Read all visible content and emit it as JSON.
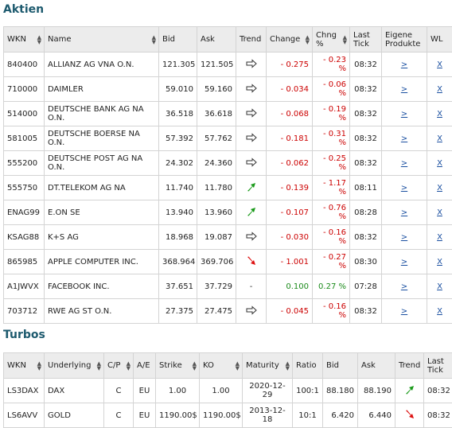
{
  "aktien": {
    "title": "Aktien",
    "headers": [
      "WKN",
      "Name",
      "Bid",
      "Ask",
      "Trend",
      "Change",
      "Chng %",
      "Last Tick",
      "Eigene Produkte",
      "WL"
    ],
    "rows": [
      {
        "wkn": "840400",
        "name": "ALLIANZ AG VNA O.N.",
        "bid": "121.305",
        "ask": "121.505",
        "trend": "flat",
        "change": "- 0.275",
        "chng": "- 0.23 %",
        "dir": "neg",
        "tick": "08:32",
        "prod": ">",
        "wl": "X"
      },
      {
        "wkn": "710000",
        "name": "DAIMLER",
        "bid": "59.010",
        "ask": "59.160",
        "trend": "flat",
        "change": "- 0.034",
        "chng": "- 0.06 %",
        "dir": "neg",
        "tick": "08:32",
        "prod": ">",
        "wl": "X"
      },
      {
        "wkn": "514000",
        "name": "DEUTSCHE BANK AG NA O.N.",
        "bid": "36.518",
        "ask": "36.618",
        "trend": "flat",
        "change": "- 0.068",
        "chng": "- 0.19 %",
        "dir": "neg",
        "tick": "08:32",
        "prod": ">",
        "wl": "X"
      },
      {
        "wkn": "581005",
        "name": "DEUTSCHE BOERSE NA O.N.",
        "bid": "57.392",
        "ask": "57.762",
        "trend": "flat",
        "change": "- 0.181",
        "chng": "- 0.31 %",
        "dir": "neg",
        "tick": "08:32",
        "prod": ">",
        "wl": "X"
      },
      {
        "wkn": "555200",
        "name": "DEUTSCHE POST AG NA O.N.",
        "bid": "24.302",
        "ask": "24.360",
        "trend": "flat",
        "change": "- 0.062",
        "chng": "- 0.25 %",
        "dir": "neg",
        "tick": "08:32",
        "prod": ">",
        "wl": "X"
      },
      {
        "wkn": "555750",
        "name": "DT.TELEKOM AG NA",
        "bid": "11.740",
        "ask": "11.780",
        "trend": "up",
        "change": "- 0.139",
        "chng": "- 1.17 %",
        "dir": "neg",
        "tick": "08:11",
        "prod": ">",
        "wl": "X"
      },
      {
        "wkn": "ENAG99",
        "name": "E.ON SE",
        "bid": "13.940",
        "ask": "13.960",
        "trend": "up",
        "change": "- 0.107",
        "chng": "- 0.76 %",
        "dir": "neg",
        "tick": "08:28",
        "prod": ">",
        "wl": "X"
      },
      {
        "wkn": "KSAG88",
        "name": "K+S AG",
        "bid": "18.968",
        "ask": "19.087",
        "trend": "flat",
        "change": "- 0.030",
        "chng": "- 0.16 %",
        "dir": "neg",
        "tick": "08:32",
        "prod": ">",
        "wl": "X"
      },
      {
        "wkn": "865985",
        "name": "APPLE COMPUTER INC.",
        "bid": "368.964",
        "ask": "369.706",
        "trend": "down",
        "change": "- 1.001",
        "chng": "- 0.27 %",
        "dir": "neg",
        "tick": "08:30",
        "prod": ">",
        "wl": "X"
      },
      {
        "wkn": "A1JWVX",
        "name": "FACEBOOK INC.",
        "bid": "37.651",
        "ask": "37.729",
        "trend": "none",
        "trend_text": "-",
        "change": "0.100",
        "chng": "0.27 %",
        "dir": "pos",
        "tick": "07:28",
        "prod": ">",
        "wl": "X"
      },
      {
        "wkn": "703712",
        "name": "RWE AG ST O.N.",
        "bid": "27.375",
        "ask": "27.475",
        "trend": "flat",
        "change": "- 0.045",
        "chng": "- 0.16 %",
        "dir": "neg",
        "tick": "08:32",
        "prod": ">",
        "wl": "X"
      }
    ]
  },
  "turbos": {
    "title": "Turbos",
    "headers": [
      "WKN",
      "Underlying",
      "C/P",
      "A/E",
      "Strike",
      "KO",
      "Maturity",
      "Ratio",
      "Bid",
      "Ask",
      "Trend",
      "Last Tick"
    ],
    "rows": [
      {
        "wkn": "LS3DAX",
        "underlying": "DAX",
        "cp": "C",
        "ae": "EU",
        "strike": "1.00",
        "ko": "1.00",
        "maturity": "2020-12-29",
        "ratio": "100:1",
        "bid": "88.180",
        "ask": "88.190",
        "trend": "up",
        "tick": "08:32"
      },
      {
        "wkn": "LS6AVV",
        "underlying": "GOLD",
        "cp": "C",
        "ae": "EU",
        "strike": "1190.00$",
        "ko": "1190.00$",
        "maturity": "2013-12-18",
        "ratio": "10:1",
        "bid": "6.420",
        "ask": "6.440",
        "trend": "down",
        "tick": "08:32"
      }
    ]
  },
  "colors": {
    "title": "#1d5a6e",
    "header_bg": "#ececec",
    "negative": "#cc0000",
    "positive": "#1a8a1a",
    "link": "#1a4fa0",
    "trend_up": "#1a9a1a",
    "trend_down": "#dd1111"
  }
}
